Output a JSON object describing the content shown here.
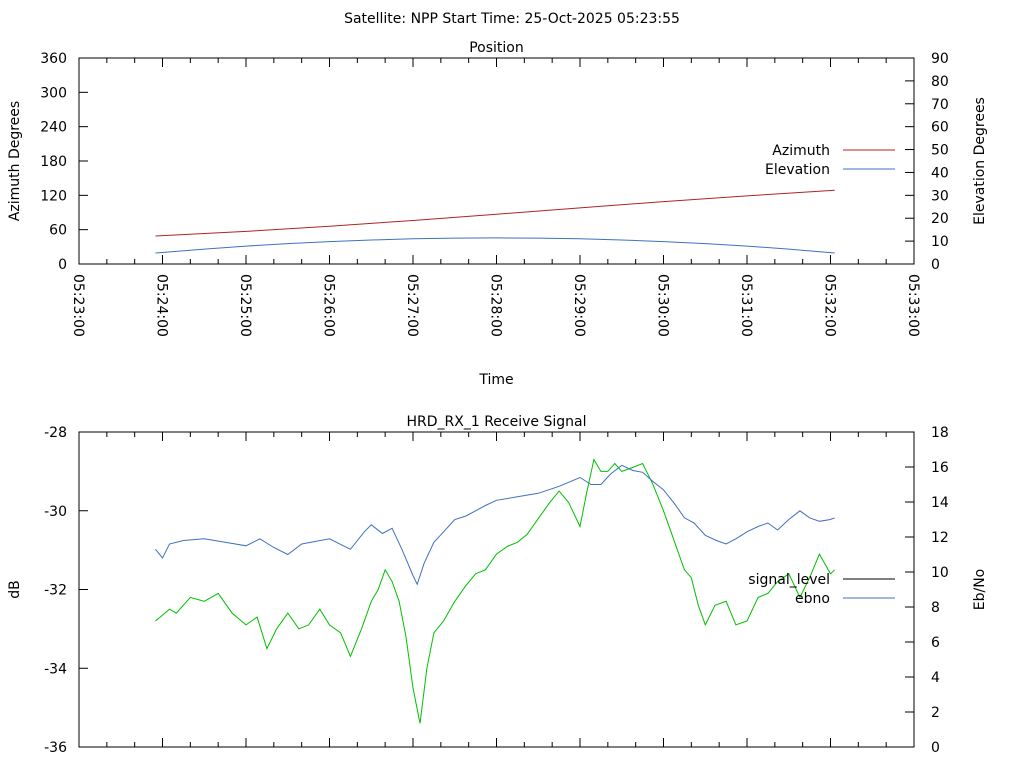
{
  "title": "Satellite: NPP    Start Time: 25-Oct-2025 05:23:55",
  "chart_data": [
    {
      "type": "line",
      "title": "Position",
      "xlabel": "Time",
      "ylabel": "Azimuth Degrees",
      "y2label": "Elevation Degrees",
      "xlim": [
        "05:23:00",
        "05:33:00"
      ],
      "xticks": [
        "05:23:00",
        "05:24:00",
        "05:25:00",
        "05:26:00",
        "05:27:00",
        "05:28:00",
        "05:29:00",
        "05:30:00",
        "05:31:00",
        "05:32:00",
        "05:33:00"
      ],
      "ylim": [
        0,
        360
      ],
      "yticks": [
        "0",
        "60",
        "120",
        "180",
        "240",
        "300",
        "360"
      ],
      "y2lim": [
        0,
        90
      ],
      "y2ticks": [
        "0",
        "10",
        "20",
        "30",
        "40",
        "50",
        "60",
        "70",
        "80",
        "90"
      ],
      "legend_position": "right",
      "series": [
        {
          "name": "Azimuth",
          "axis": "y",
          "color": "#b22222",
          "points": [
            [
              "05:23:55",
              49
            ],
            [
              "05:25:00",
              57
            ],
            [
              "05:26:00",
              66
            ],
            [
              "05:27:00",
              76
            ],
            [
              "05:28:00",
              87
            ],
            [
              "05:29:00",
              98
            ],
            [
              "05:30:00",
              109
            ],
            [
              "05:31:00",
              119
            ],
            [
              "05:32:03",
              129
            ]
          ]
        },
        {
          "name": "Elevation",
          "axis": "y2",
          "color": "#4070c0",
          "points": [
            [
              "05:23:55",
              4.8
            ],
            [
              "05:24:30",
              6.5
            ],
            [
              "05:25:00",
              7.8
            ],
            [
              "05:25:30",
              8.9
            ],
            [
              "05:26:00",
              9.8
            ],
            [
              "05:26:30",
              10.5
            ],
            [
              "05:27:00",
              11.0
            ],
            [
              "05:27:30",
              11.3
            ],
            [
              "05:28:00",
              11.4
            ],
            [
              "05:28:30",
              11.3
            ],
            [
              "05:29:00",
              11.0
            ],
            [
              "05:29:30",
              10.5
            ],
            [
              "05:30:00",
              9.8
            ],
            [
              "05:30:30",
              8.9
            ],
            [
              "05:31:00",
              7.8
            ],
            [
              "05:31:30",
              6.5
            ],
            [
              "05:32:03",
              4.8
            ]
          ]
        }
      ]
    },
    {
      "type": "line",
      "title": "HRD_RX_1 Receive Signal",
      "ylabel": "dB",
      "y2label": "Eb/No",
      "xlim": [
        "05:23:00",
        "05:33:00"
      ],
      "ylim": [
        -36,
        -28
      ],
      "yticks": [
        "-28",
        "-30",
        "-32",
        "-34",
        "-36"
      ],
      "y2lim": [
        0,
        18
      ],
      "y2ticks": [
        "0",
        "2",
        "4",
        "6",
        "8",
        "10",
        "12",
        "14",
        "16",
        "18"
      ],
      "legend_position": "right",
      "series": [
        {
          "name": "signal_level",
          "axis": "y",
          "color": "#00c000",
          "legend_color": "#000000",
          "points": [
            [
              "05:23:55",
              -32.8
            ],
            [
              "05:24:05",
              -32.5
            ],
            [
              "05:24:10",
              -32.6
            ],
            [
              "05:24:20",
              -32.2
            ],
            [
              "05:24:30",
              -32.3
            ],
            [
              "05:24:40",
              -32.1
            ],
            [
              "05:24:50",
              -32.6
            ],
            [
              "05:25:00",
              -32.9
            ],
            [
              "05:25:08",
              -32.7
            ],
            [
              "05:25:15",
              -33.5
            ],
            [
              "05:25:22",
              -33.0
            ],
            [
              "05:25:30",
              -32.6
            ],
            [
              "05:25:38",
              -33.0
            ],
            [
              "05:25:45",
              -32.9
            ],
            [
              "05:25:53",
              -32.5
            ],
            [
              "05:26:00",
              -32.9
            ],
            [
              "05:26:08",
              -33.1
            ],
            [
              "05:26:15",
              -33.7
            ],
            [
              "05:26:23",
              -33.0
            ],
            [
              "05:26:30",
              -32.3
            ],
            [
              "05:26:35",
              -32.0
            ],
            [
              "05:26:40",
              -31.5
            ],
            [
              "05:26:45",
              -31.8
            ],
            [
              "05:26:50",
              -32.3
            ],
            [
              "05:26:55",
              -33.2
            ],
            [
              "05:27:00",
              -34.5
            ],
            [
              "05:27:05",
              -35.4
            ],
            [
              "05:27:10",
              -34.0
            ],
            [
              "05:27:15",
              -33.1
            ],
            [
              "05:27:22",
              -32.8
            ],
            [
              "05:27:30",
              -32.3
            ],
            [
              "05:27:38",
              -31.9
            ],
            [
              "05:27:45",
              -31.6
            ],
            [
              "05:27:52",
              -31.5
            ],
            [
              "05:28:00",
              -31.1
            ],
            [
              "05:28:08",
              -30.9
            ],
            [
              "05:28:15",
              -30.8
            ],
            [
              "05:28:22",
              -30.6
            ],
            [
              "05:28:30",
              -30.2
            ],
            [
              "05:28:38",
              -29.8
            ],
            [
              "05:28:45",
              -29.5
            ],
            [
              "05:28:52",
              -29.8
            ],
            [
              "05:29:00",
              -30.4
            ],
            [
              "05:29:05",
              -29.5
            ],
            [
              "05:29:10",
              -28.7
            ],
            [
              "05:29:15",
              -29.0
            ],
            [
              "05:29:20",
              -29.0
            ],
            [
              "05:29:25",
              -28.8
            ],
            [
              "05:29:30",
              -29.0
            ],
            [
              "05:29:38",
              -28.9
            ],
            [
              "05:29:45",
              -28.8
            ],
            [
              "05:29:52",
              -29.3
            ],
            [
              "05:30:00",
              -30.0
            ],
            [
              "05:30:05",
              -30.5
            ],
            [
              "05:30:10",
              -31.0
            ],
            [
              "05:30:15",
              -31.5
            ],
            [
              "05:30:20",
              -31.7
            ],
            [
              "05:30:25",
              -32.4
            ],
            [
              "05:30:30",
              -32.9
            ],
            [
              "05:30:37",
              -32.4
            ],
            [
              "05:30:45",
              -32.3
            ],
            [
              "05:30:52",
              -32.9
            ],
            [
              "05:31:00",
              -32.8
            ],
            [
              "05:31:08",
              -32.2
            ],
            [
              "05:31:15",
              -32.1
            ],
            [
              "05:31:22",
              -31.8
            ],
            [
              "05:31:30",
              -31.6
            ],
            [
              "05:31:38",
              -32.2
            ],
            [
              "05:31:45",
              -31.7
            ],
            [
              "05:31:52",
              -31.1
            ],
            [
              "05:32:00",
              -31.6
            ],
            [
              "05:32:03",
              -31.5
            ]
          ]
        },
        {
          "name": "ebno",
          "axis": "y2",
          "color": "#4070c0",
          "points": [
            [
              "05:23:55",
              11.3
            ],
            [
              "05:24:00",
              10.8
            ],
            [
              "05:24:05",
              11.6
            ],
            [
              "05:24:15",
              11.8
            ],
            [
              "05:24:30",
              11.9
            ],
            [
              "05:24:45",
              11.7
            ],
            [
              "05:25:00",
              11.5
            ],
            [
              "05:25:10",
              11.9
            ],
            [
              "05:25:20",
              11.4
            ],
            [
              "05:25:30",
              11.0
            ],
            [
              "05:25:40",
              11.6
            ],
            [
              "05:26:00",
              11.9
            ],
            [
              "05:26:10",
              11.5
            ],
            [
              "05:26:15",
              11.3
            ],
            [
              "05:26:25",
              12.3
            ],
            [
              "05:26:30",
              12.7
            ],
            [
              "05:26:38",
              12.2
            ],
            [
              "05:26:45",
              12.5
            ],
            [
              "05:26:52",
              11.3
            ],
            [
              "05:27:00",
              9.8
            ],
            [
              "05:27:03",
              9.3
            ],
            [
              "05:27:08",
              10.5
            ],
            [
              "05:27:15",
              11.7
            ],
            [
              "05:27:22",
              12.3
            ],
            [
              "05:27:30",
              13.0
            ],
            [
              "05:27:38",
              13.2
            ],
            [
              "05:27:45",
              13.5
            ],
            [
              "05:27:52",
              13.8
            ],
            [
              "05:28:00",
              14.1
            ],
            [
              "05:28:15",
              14.3
            ],
            [
              "05:28:30",
              14.5
            ],
            [
              "05:28:45",
              14.9
            ],
            [
              "05:29:00",
              15.4
            ],
            [
              "05:29:08",
              15.0
            ],
            [
              "05:29:15",
              15.0
            ],
            [
              "05:29:22",
              15.6
            ],
            [
              "05:29:30",
              16.1
            ],
            [
              "05:29:38",
              15.8
            ],
            [
              "05:29:45",
              15.7
            ],
            [
              "05:29:52",
              15.2
            ],
            [
              "05:30:00",
              14.7
            ],
            [
              "05:30:08",
              13.9
            ],
            [
              "05:30:15",
              13.1
            ],
            [
              "05:30:22",
              12.8
            ],
            [
              "05:30:30",
              12.1
            ],
            [
              "05:30:38",
              11.8
            ],
            [
              "05:30:45",
              11.6
            ],
            [
              "05:30:52",
              11.9
            ],
            [
              "05:31:00",
              12.3
            ],
            [
              "05:31:08",
              12.6
            ],
            [
              "05:31:15",
              12.8
            ],
            [
              "05:31:22",
              12.4
            ],
            [
              "05:31:30",
              13.0
            ],
            [
              "05:31:38",
              13.5
            ],
            [
              "05:31:45",
              13.1
            ],
            [
              "05:31:52",
              12.9
            ],
            [
              "05:32:00",
              13.0
            ],
            [
              "05:32:03",
              13.1
            ]
          ]
        }
      ]
    }
  ]
}
